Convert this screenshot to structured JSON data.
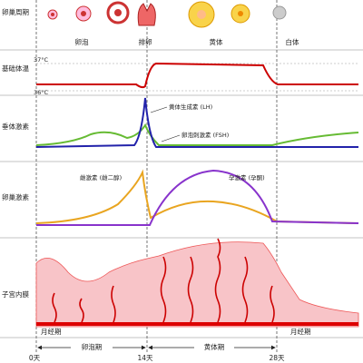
{
  "rows": {
    "ovary": "卵巢周期",
    "temperature": "基础体温",
    "pituitary": "垂体激素",
    "ovarian_hormone": "卵巢激素",
    "endometrium": "子宫内膜"
  },
  "stages": {
    "follicle": "卵泡",
    "ovulation": "排卵",
    "corpus_luteum": "黄体",
    "corpus_albicans": "白体"
  },
  "temp_labels": {
    "high": "37°C",
    "low": "36°C"
  },
  "hormones": {
    "lh": "黄体生成素 (LH)",
    "fsh": "卵泡刺激素 (FSH)",
    "estrogen": "雌激素 (雌二醇)",
    "progesterone": "孕激素 (孕酮)"
  },
  "phases": {
    "menses_left": "月经期",
    "menses_right": "月经期",
    "follicular": "卵泡期",
    "luteal": "黄体期"
  },
  "days": {
    "start": "0天",
    "mid": "14天",
    "end": "28天"
  }
}
